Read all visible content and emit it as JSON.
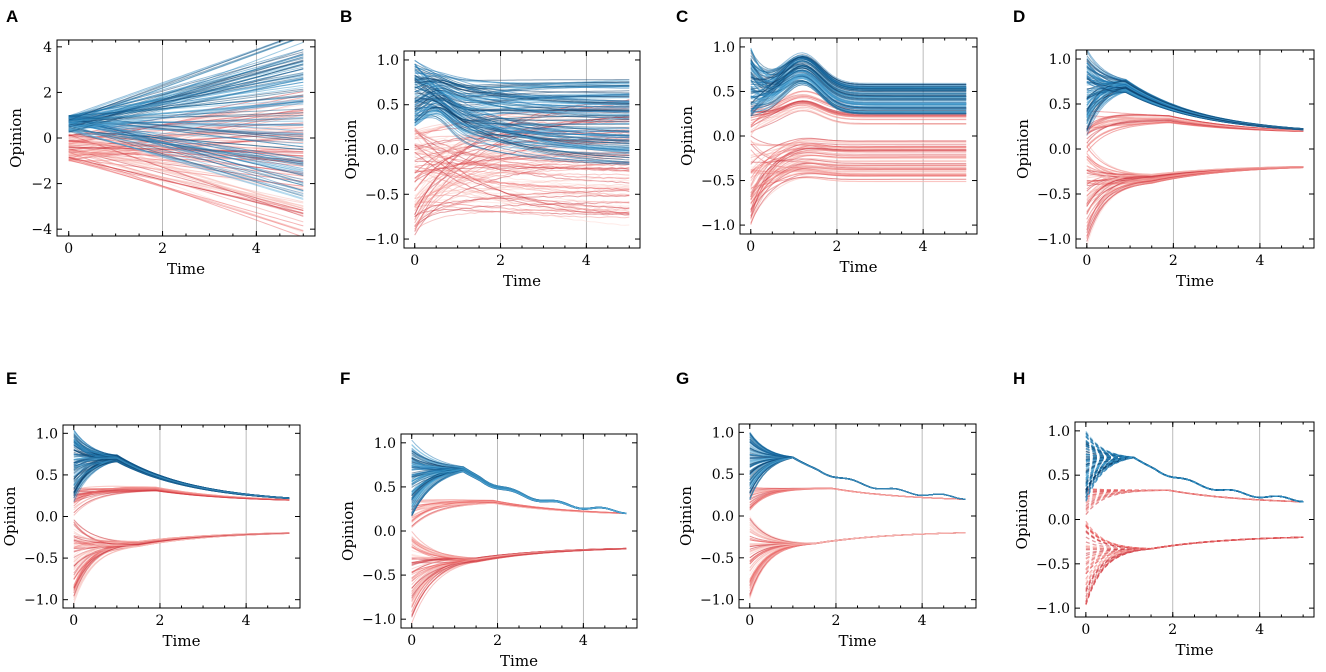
{
  "figure": {
    "series_colors": {
      "blue": [
        "#1f77b4",
        "#2f8fc4",
        "#5aaed9",
        "#0b4f7f",
        "#0a3a66"
      ],
      "red": [
        "#e9595a",
        "#f08a87",
        "#f6b3ae",
        "#c9303a",
        "#ffd2cc"
      ]
    }
  },
  "chart_data": [
    {
      "panel": "A",
      "type": "line",
      "xlabel": "Time",
      "ylabel": "Opinion",
      "xlim": [
        -0.25,
        5.25
      ],
      "ylim": [
        -4.3,
        4.3
      ],
      "xticks": [
        0,
        2,
        4
      ],
      "yticks": [
        -4,
        -2,
        0,
        2,
        4
      ],
      "ytick_labels": [
        "−4",
        "−2",
        "0",
        "2",
        "4"
      ],
      "gridlines_x": [
        2,
        4
      ],
      "series": [
        {
          "name": "blue group",
          "color": "blue",
          "trajectories": "~120 lines starting near 0.2–1.0, spreading linearly to between −3.5 and 3.8 by t=5"
        },
        {
          "name": "red group",
          "color": "red",
          "trajectories": "~120 lines starting near −1.0 to 0.3, spreading linearly to between −4 and 2 by t=5"
        }
      ]
    },
    {
      "panel": "B",
      "type": "line",
      "xlabel": "Time",
      "ylabel": "Opinion",
      "xlim": [
        -0.25,
        5.25
      ],
      "ylim": [
        -1.1,
        1.1
      ],
      "xticks": [
        0,
        2,
        4
      ],
      "yticks": [
        -1.0,
        -0.5,
        0.0,
        0.5,
        1.0
      ],
      "ytick_labels": [
        "−1.0",
        "−0.5",
        "0.0",
        "0.5",
        "1.0"
      ],
      "gridlines_x": [
        2,
        4
      ],
      "series": [
        {
          "name": "blue group",
          "color": "blue",
          "trajectories": "start 0.2–1.0, peak ~0.8 near t=0.5, slowly spread to −0.2–0.8 by t=5"
        },
        {
          "name": "red group",
          "color": "red",
          "trajectories": "start −1.0–0.2, fan out to −0.9–0.6 by t=5"
        }
      ]
    },
    {
      "panel": "C",
      "type": "line",
      "xlabel": "Time",
      "ylabel": "Opinion",
      "xlim": [
        -0.25,
        5.25
      ],
      "ylim": [
        -1.1,
        1.1
      ],
      "xticks": [
        0,
        2,
        4
      ],
      "yticks": [
        -1.0,
        -0.5,
        0.0,
        0.5,
        1.0
      ],
      "ytick_labels": [
        "−1.0",
        "−0.5",
        "0.0",
        "0.5",
        "1.0"
      ],
      "gridlines_x": [
        2,
        4
      ],
      "series": [
        {
          "name": "blue group",
          "color": "blue",
          "trajectories": "start 0.2–1.0, bump to ~0.8 at t≈1.2, settle ~0.2–0.6"
        },
        {
          "name": "red upper",
          "color": "red",
          "trajectories": "rise to ~0.3–0.45 near t=1.5"
        },
        {
          "name": "red lower",
          "color": "red",
          "trajectories": "start −1.0–0.0, settle −0.55 to −0.05"
        }
      ]
    },
    {
      "panel": "D",
      "type": "line",
      "xlabel": "Time",
      "ylabel": "Opinion",
      "xlim": [
        -0.25,
        5.25
      ],
      "ylim": [
        -1.1,
        1.1
      ],
      "xticks": [
        0,
        2,
        4
      ],
      "yticks": [
        -1.0,
        -0.5,
        0.0,
        0.5,
        1.0
      ],
      "ytick_labels": [
        "−1.0",
        "−0.5",
        "0.0",
        "0.5",
        "1.0"
      ],
      "gridlines_x": [
        2,
        4
      ],
      "series": [
        {
          "name": "blue group",
          "color": "blue",
          "trajectories": "start 0.2–1.0, converge to ~0.7 at t≈0.9, decay to ~0.25 by t=5"
        },
        {
          "name": "red upper",
          "color": "red",
          "trajectories": "converge to ~0.3 near t=1.8, then ~0.22"
        },
        {
          "name": "red lower",
          "color": "red",
          "trajectories": "start −1.0–0.0, converge to ~−0.3, then −0.22"
        }
      ]
    },
    {
      "panel": "E",
      "type": "line",
      "xlabel": "Time",
      "ylabel": "Opinion",
      "xlim": [
        -0.25,
        5.25
      ],
      "ylim": [
        -1.1,
        1.1
      ],
      "xticks": [
        0,
        2,
        4
      ],
      "yticks": [
        -1.0,
        -0.5,
        0.0,
        0.5,
        1.0
      ],
      "ytick_labels": [
        "−1.0",
        "−0.5",
        "0.0",
        "0.5",
        "1.0"
      ],
      "gridlines_x": [
        2,
        4
      ],
      "series": [
        {
          "name": "blue group",
          "color": "blue",
          "trajectories": "converge to ~0.65 at t≈1, decay to ~0.2"
        },
        {
          "name": "red upper",
          "color": "red",
          "trajectories": "~0.3 peak near t=1.8, then ~0.2"
        },
        {
          "name": "red lower",
          "color": "red",
          "trajectories": "converge to ~−0.3, rise to −0.2"
        }
      ]
    },
    {
      "panel": "F",
      "type": "line",
      "xlabel": "Time",
      "ylabel": "Opinion",
      "xlim": [
        -0.25,
        5.25
      ],
      "ylim": [
        -1.1,
        1.1
      ],
      "xticks": [
        0,
        2,
        4
      ],
      "yticks": [
        -1.0,
        -0.5,
        0.0,
        0.5,
        1.0
      ],
      "ytick_labels": [
        "−1.0",
        "−0.5",
        "0.0",
        "0.5",
        "1.0"
      ],
      "gridlines_x": [
        2,
        4
      ],
      "series": [
        {
          "name": "blue group",
          "color": "blue",
          "trajectories": "peak ~0.7 at t≈1.2, decay to ~0.2 with wiggles"
        },
        {
          "name": "red upper",
          "color": "red",
          "trajectories": "~0.35 near t=2, then ~0.2"
        },
        {
          "name": "red lower",
          "color": "red",
          "trajectories": "converge to ~−0.35, rise to −0.2"
        }
      ]
    },
    {
      "panel": "G",
      "type": "line",
      "xlabel": "Time",
      "ylabel": "Opinion",
      "xlim": [
        -0.25,
        5.25
      ],
      "ylim": [
        -1.1,
        1.1
      ],
      "xticks": [
        0,
        2,
        4
      ],
      "yticks": [
        -1.0,
        -0.5,
        0.0,
        0.5,
        1.0
      ],
      "ytick_labels": [
        "−1.0",
        "−0.5",
        "0.0",
        "0.5",
        "1.0"
      ],
      "gridlines_x": [
        2,
        4
      ],
      "series": [
        {
          "name": "blue group",
          "color": "blue",
          "trajectories": "tight consensus ~0.72 at t≈1, decays to ~0.22"
        },
        {
          "name": "red upper",
          "color": "red",
          "trajectories": "~0.35 at t=2, then ~0.22"
        },
        {
          "name": "red lower",
          "color": "red",
          "trajectories": "converge to ~−0.3, rise to −0.2"
        }
      ]
    },
    {
      "panel": "H",
      "type": "line",
      "xlabel": "Time",
      "ylabel": "Opinion",
      "xlim": [
        -0.25,
        5.25
      ],
      "ylim": [
        -1.1,
        1.1
      ],
      "xticks": [
        0,
        2,
        4
      ],
      "yticks": [
        -1.0,
        -0.5,
        0.0,
        0.5,
        1.0
      ],
      "ytick_labels": [
        "−1.0",
        "−0.5",
        "0.0",
        "0.5",
        "1.0"
      ],
      "gridlines_x": [
        2,
        4
      ],
      "series": [
        {
          "name": "blue group",
          "color": "blue",
          "trajectories": "dashed trajectories converging to single line ~0.72 at t≈1, decaying to ~0.22"
        },
        {
          "name": "red upper",
          "color": "red",
          "trajectories": "dashed, ~0.35 at t=2, then ~0.22"
        },
        {
          "name": "red lower",
          "color": "red",
          "trajectories": "dashed, converge to ~−0.3, rise to −0.2"
        }
      ]
    }
  ]
}
